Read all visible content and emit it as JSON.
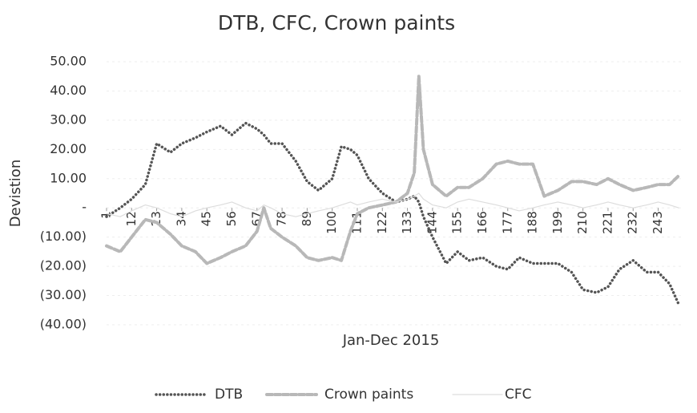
{
  "chart_data": {
    "type": "line",
    "title": "DTB, CFC, Crown paints",
    "x_label": "Jan-Dec 2015",
    "y_label": "Devistion",
    "x": [
      1,
      7,
      12,
      18,
      23,
      29,
      34,
      40,
      45,
      51,
      56,
      62,
      67,
      70,
      73,
      78,
      84,
      89,
      94,
      100,
      104,
      108,
      111,
      116,
      122,
      128,
      133,
      136,
      138,
      140,
      144,
      150,
      155,
      160,
      166,
      172,
      177,
      182,
      188,
      193,
      199,
      205,
      210,
      216,
      221,
      226,
      232,
      238,
      243,
      248,
      252
    ],
    "xlim": [
      1,
      253
    ],
    "xticks": [
      1,
      12,
      23,
      34,
      45,
      56,
      67,
      78,
      89,
      100,
      111,
      122,
      133,
      144,
      155,
      166,
      177,
      188,
      199,
      210,
      221,
      232,
      243
    ],
    "ylim": [
      -40,
      50
    ],
    "yticks": [
      {
        "value": -40,
        "label": "(40.00)"
      },
      {
        "value": -30,
        "label": "(30.00)"
      },
      {
        "value": -20,
        "label": "(20.00)"
      },
      {
        "value": -10,
        "label": "(10.00)"
      },
      {
        "value": 0,
        "label": "-"
      },
      {
        "value": 10,
        "label": "10.00"
      },
      {
        "value": 20,
        "label": "20.00"
      },
      {
        "value": 30,
        "label": "30.00"
      },
      {
        "value": 40,
        "label": "40.00"
      },
      {
        "value": 50,
        "label": "50.00"
      }
    ],
    "grid": true,
    "legend": "bottom",
    "series": [
      {
        "name": "DTB",
        "color": "#555555",
        "line_style": "dotted",
        "values": [
          -3,
          0,
          3,
          8,
          22,
          19,
          22,
          24,
          26,
          28,
          25,
          29,
          27,
          25,
          22,
          22,
          16,
          9,
          6,
          10,
          21,
          20,
          18,
          10,
          5,
          2,
          3,
          4,
          2,
          -3,
          -10,
          -19,
          -15,
          -18,
          -17,
          -20,
          -21,
          -17,
          -19,
          -19,
          -19,
          -22,
          -28,
          -29,
          -27,
          -21,
          -18,
          -22,
          -22,
          -26,
          -33
        ]
      },
      {
        "name": "Crown paints",
        "color": "#b8b8b8",
        "line_style": "dashed",
        "values": [
          -13,
          -15,
          -10,
          -4,
          -5,
          -9,
          -13,
          -15,
          -19,
          -17,
          -15,
          -13,
          -8,
          0,
          -7,
          -10,
          -13,
          -17,
          -18,
          -17,
          -18,
          -8,
          -2,
          0,
          1,
          2,
          5,
          12,
          45,
          20,
          8,
          4,
          7,
          7,
          10,
          15,
          16,
          15,
          15,
          4,
          6,
          9,
          9,
          8,
          10,
          8,
          6,
          7,
          8,
          8,
          11
        ]
      },
      {
        "name": "CFC",
        "color": "#dddddd",
        "line_style": "solid",
        "values": [
          -2,
          -3,
          -1,
          1,
          0,
          -2,
          -3,
          -1,
          0,
          1,
          2,
          0,
          -1,
          1,
          0,
          -2,
          -3,
          -2,
          -1,
          0,
          1,
          2,
          1,
          2,
          3,
          2,
          3,
          4,
          5,
          3,
          1,
          0,
          2,
          3,
          2,
          1,
          0,
          -1,
          0,
          1,
          2,
          1,
          0,
          1,
          2,
          1,
          0,
          1,
          2,
          1,
          0
        ]
      }
    ]
  }
}
